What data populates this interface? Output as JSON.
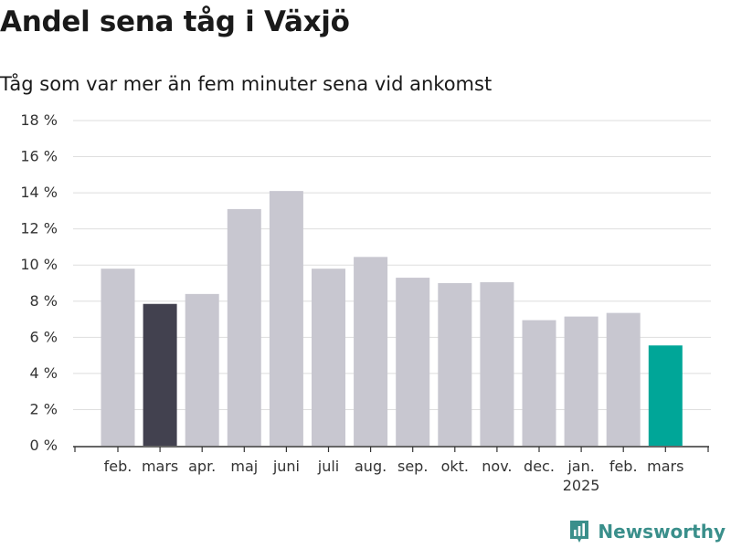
{
  "header": {
    "title": "Andel sena tåg i Växjö",
    "subtitle": "Tåg som var mer än fem minuter sena vid ankomst"
  },
  "brand": {
    "name": "Newsworthy",
    "icon": "newsworthy-logo-icon",
    "color": "#3a8f8b"
  },
  "chart_data": {
    "type": "bar",
    "categories": [
      "feb.",
      "mars",
      "apr.",
      "maj",
      "juni",
      "juli",
      "aug.",
      "sep.",
      "okt.",
      "nov.",
      "dec.",
      "jan.",
      "feb.",
      "mars"
    ],
    "year_label": {
      "category_index": 11,
      "text": "2025"
    },
    "values": [
      9.8,
      7.85,
      8.4,
      13.1,
      14.1,
      9.8,
      10.45,
      9.3,
      9.0,
      9.05,
      6.95,
      7.15,
      7.35,
      5.55
    ],
    "colors": [
      "#c8c7d0",
      "#42414f",
      "#c8c7d0",
      "#c8c7d0",
      "#c8c7d0",
      "#c8c7d0",
      "#c8c7d0",
      "#c8c7d0",
      "#c8c7d0",
      "#c8c7d0",
      "#c8c7d0",
      "#c8c7d0",
      "#c8c7d0",
      "#00a698"
    ],
    "yticks": [
      "0 %",
      "2 %",
      "4 %",
      "6 %",
      "8 %",
      "10 %",
      "12 %",
      "14 %",
      "16 %",
      "18 %"
    ],
    "ylim": [
      0,
      18
    ],
    "xlabel": "",
    "ylabel": "",
    "grid": true,
    "legend": "none"
  }
}
